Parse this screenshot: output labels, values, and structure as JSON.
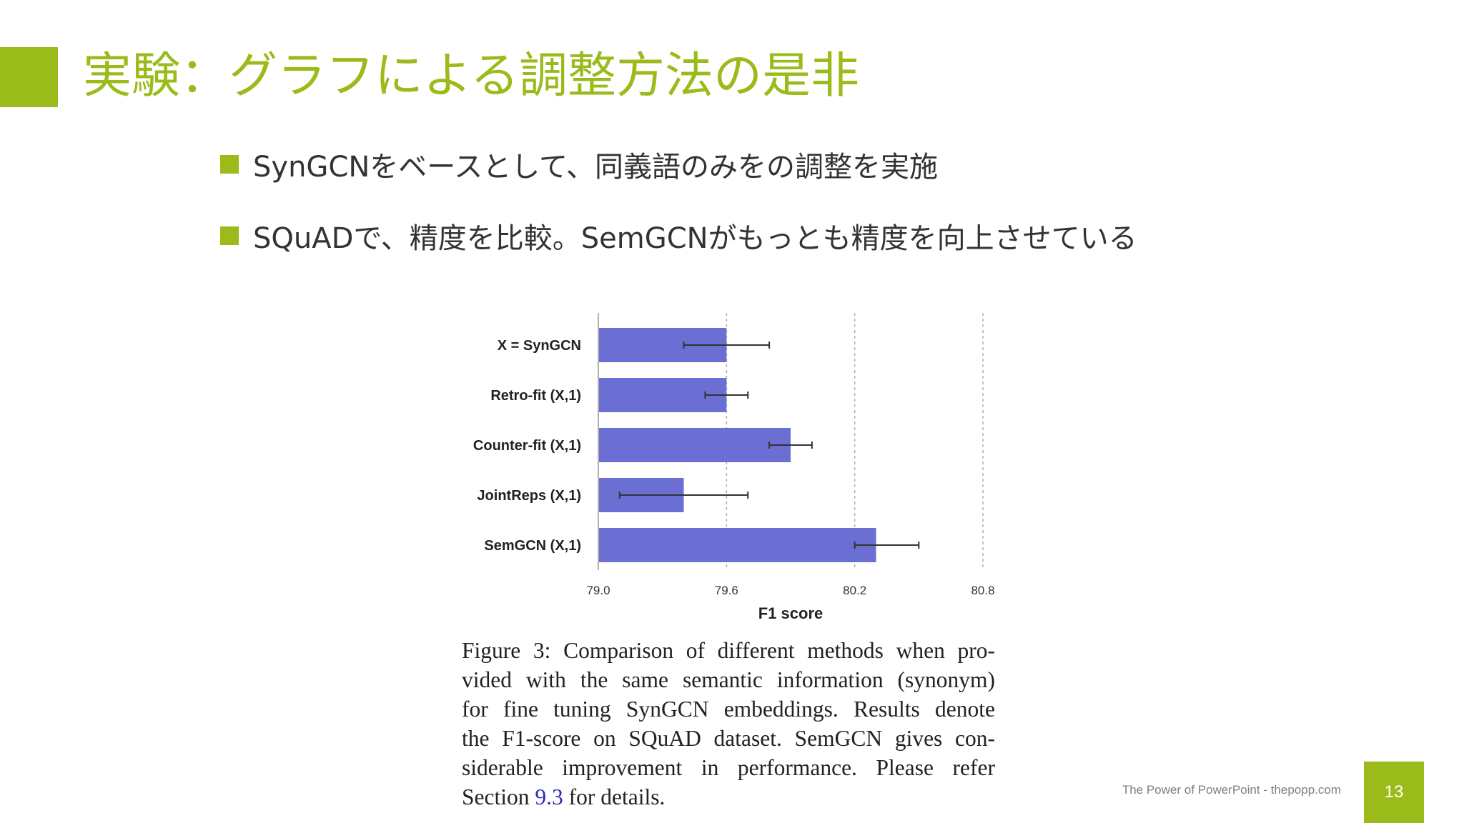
{
  "slide": {
    "title": "実験：グラフによる調整方法の是非",
    "bullets": [
      "SynGCNをベースとして、同義語のみをの調整を実施",
      "SQuADで、精度を比較。SemGCNがもっとも精度を向上させている"
    ],
    "footer": "The Power of PowerPoint - thepopp.com",
    "page_number": "13"
  },
  "colors": {
    "accent": "#9bbb1a",
    "bar": "#6b6fd4",
    "error_bar": "#333333",
    "grid": "#b0b0b0"
  },
  "chart_data": {
    "type": "bar",
    "orientation": "horizontal",
    "categories": [
      "X = SynGCN",
      "Retro-fit (X,1)",
      "Counter-fit (X,1)",
      "JointReps (X,1)",
      "SemGCN (X,1)"
    ],
    "values": [
      79.6,
      79.6,
      79.9,
      79.4,
      80.3
    ],
    "error_low": [
      79.4,
      79.5,
      79.8,
      79.1,
      80.2
    ],
    "error_high": [
      79.8,
      79.7,
      80.0,
      79.7,
      80.5
    ],
    "xlabel": "F1 score",
    "ylabel": "",
    "xlim": [
      79.0,
      80.8
    ],
    "xticks": [
      "79.0",
      "79.6",
      "80.2",
      "80.8"
    ],
    "grid": "vertical dashed",
    "caption": {
      "lines": [
        "Figure 3:  Comparison of different methods when pro-",
        "vided with the same semantic information (synonym)",
        "for fine tuning SynGCN embeddings.  Results denote",
        "the F1-score on SQuAD dataset.  SemGCN gives con-",
        "siderable improvement in performance.   Please refer"
      ],
      "last_prefix": "Section ",
      "last_link": "9.3",
      "last_suffix": " for details."
    }
  }
}
